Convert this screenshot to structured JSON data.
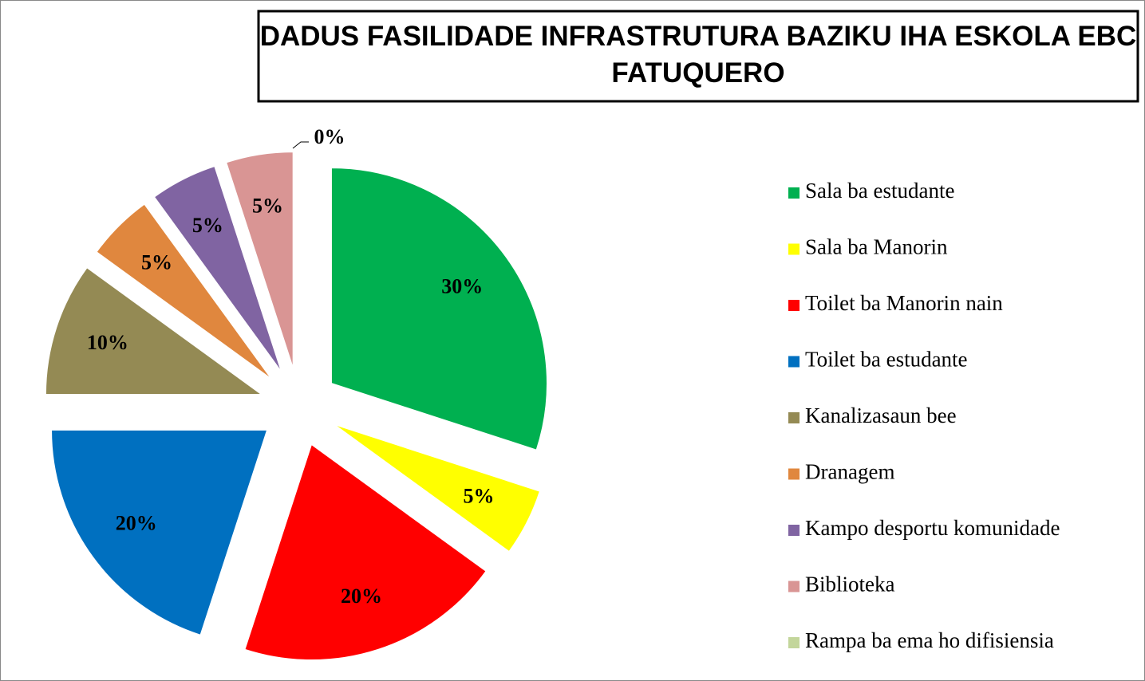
{
  "chart_data": {
    "type": "pie",
    "title": "DADUS FASILIDADE INFRASTRUTURA BAZIKU IHA ESKOLA EBC FATUQUERO",
    "categories": [
      "Sala ba estudante",
      "Sala ba Manorin",
      "Toilet ba Manorin nain",
      "Toilet ba estudante",
      "Kanalizasaun bee",
      "Dranagem",
      "Kampo desportu komunidade",
      "Biblioteka",
      "Rampa ba ema ho difisiensia"
    ],
    "values": [
      30,
      5,
      20,
      20,
      10,
      5,
      5,
      5,
      0
    ],
    "value_labels": [
      "30%",
      "5%",
      "20%",
      "20%",
      "10%",
      "5%",
      "5%",
      "5%",
      "0%"
    ],
    "colors": [
      "#00b050",
      "#ffff00",
      "#ff0000",
      "#0070c0",
      "#948a54",
      "#e0873e",
      "#8064a2",
      "#d99594",
      "#c3d69b"
    ],
    "legend": "right"
  }
}
